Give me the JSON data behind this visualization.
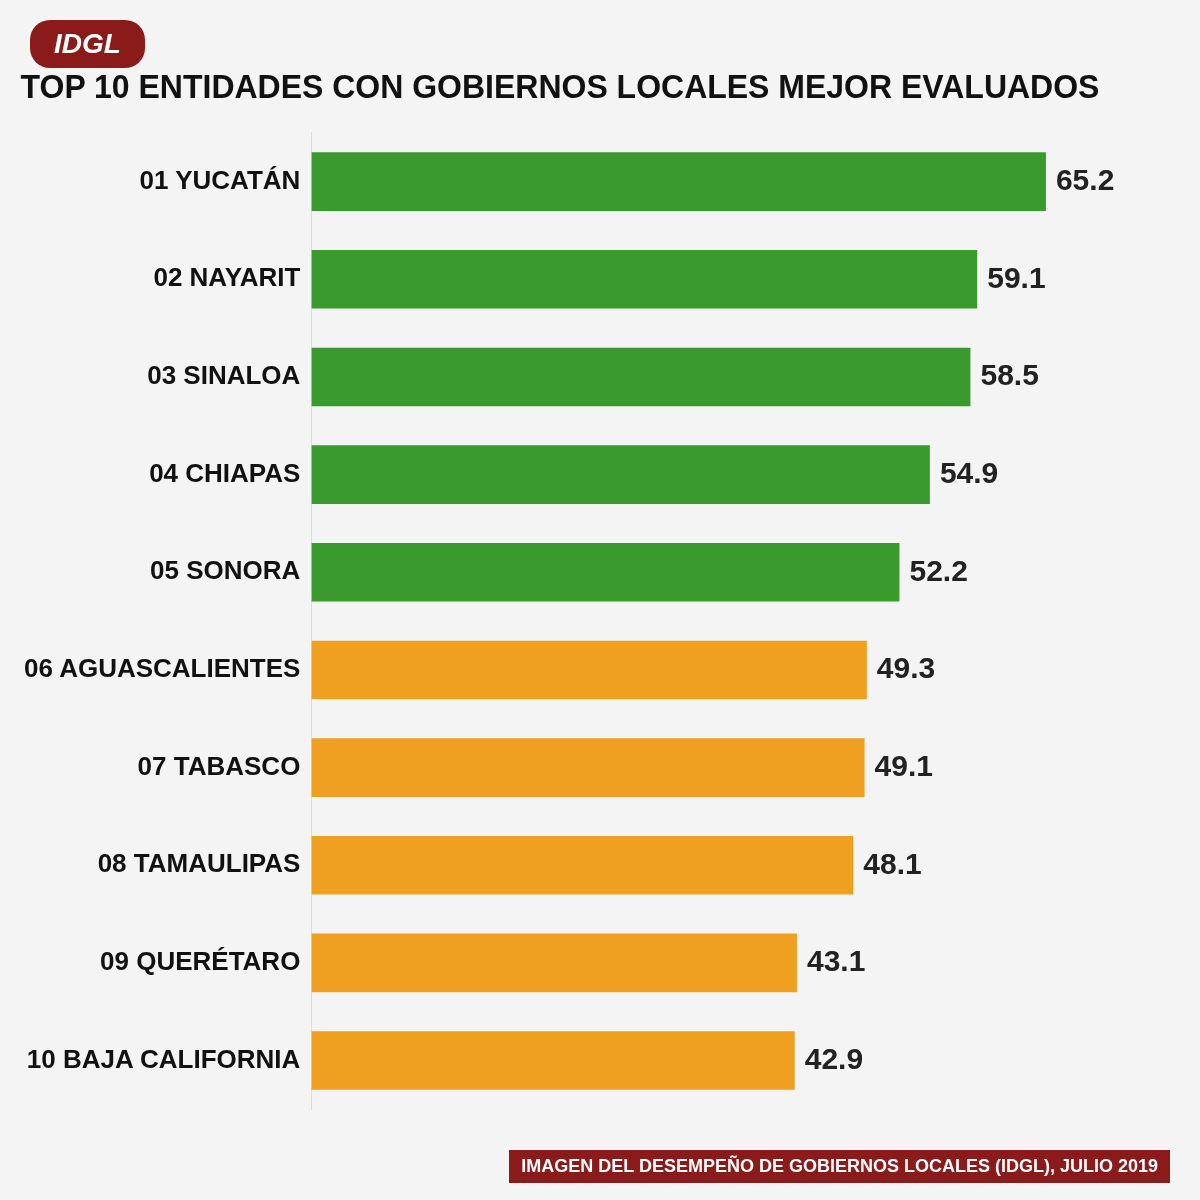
{
  "chart_data": {
    "type": "bar",
    "orientation": "horizontal",
    "title": "TOP 10 ENTIDADES CON GOBIERNOS LOCALES MEJOR EVALUADOS",
    "categories": [
      "01 YUCATÁN",
      "02 NAYARIT",
      "03 SINALOA",
      "04 CHIAPAS",
      "05 SONORA",
      "06 AGUASCALIENTES",
      "07 TABASCO",
      "08 TAMAULIPAS",
      "09 QUERÉTARO",
      "10 BAJA CALIFORNIA"
    ],
    "values": [
      65.2,
      59.1,
      58.5,
      54.9,
      52.2,
      49.3,
      49.1,
      48.1,
      43.1,
      42.9
    ],
    "colors": [
      "#3a9a2e",
      "#3a9a2e",
      "#3a9a2e",
      "#3a9a2e",
      "#3a9a2e",
      "#f0a020",
      "#f0a020",
      "#f0a020",
      "#f0a020",
      "#f0a020"
    ],
    "data_labels": true,
    "tick_labels": "y",
    "grid": false,
    "legend": false,
    "annotations": [
      "IDGL",
      "IMAGEN DEL DESEMPEÑO DE GOBIERNOS LOCALES (IDGL), JULIO 2019"
    ]
  }
}
